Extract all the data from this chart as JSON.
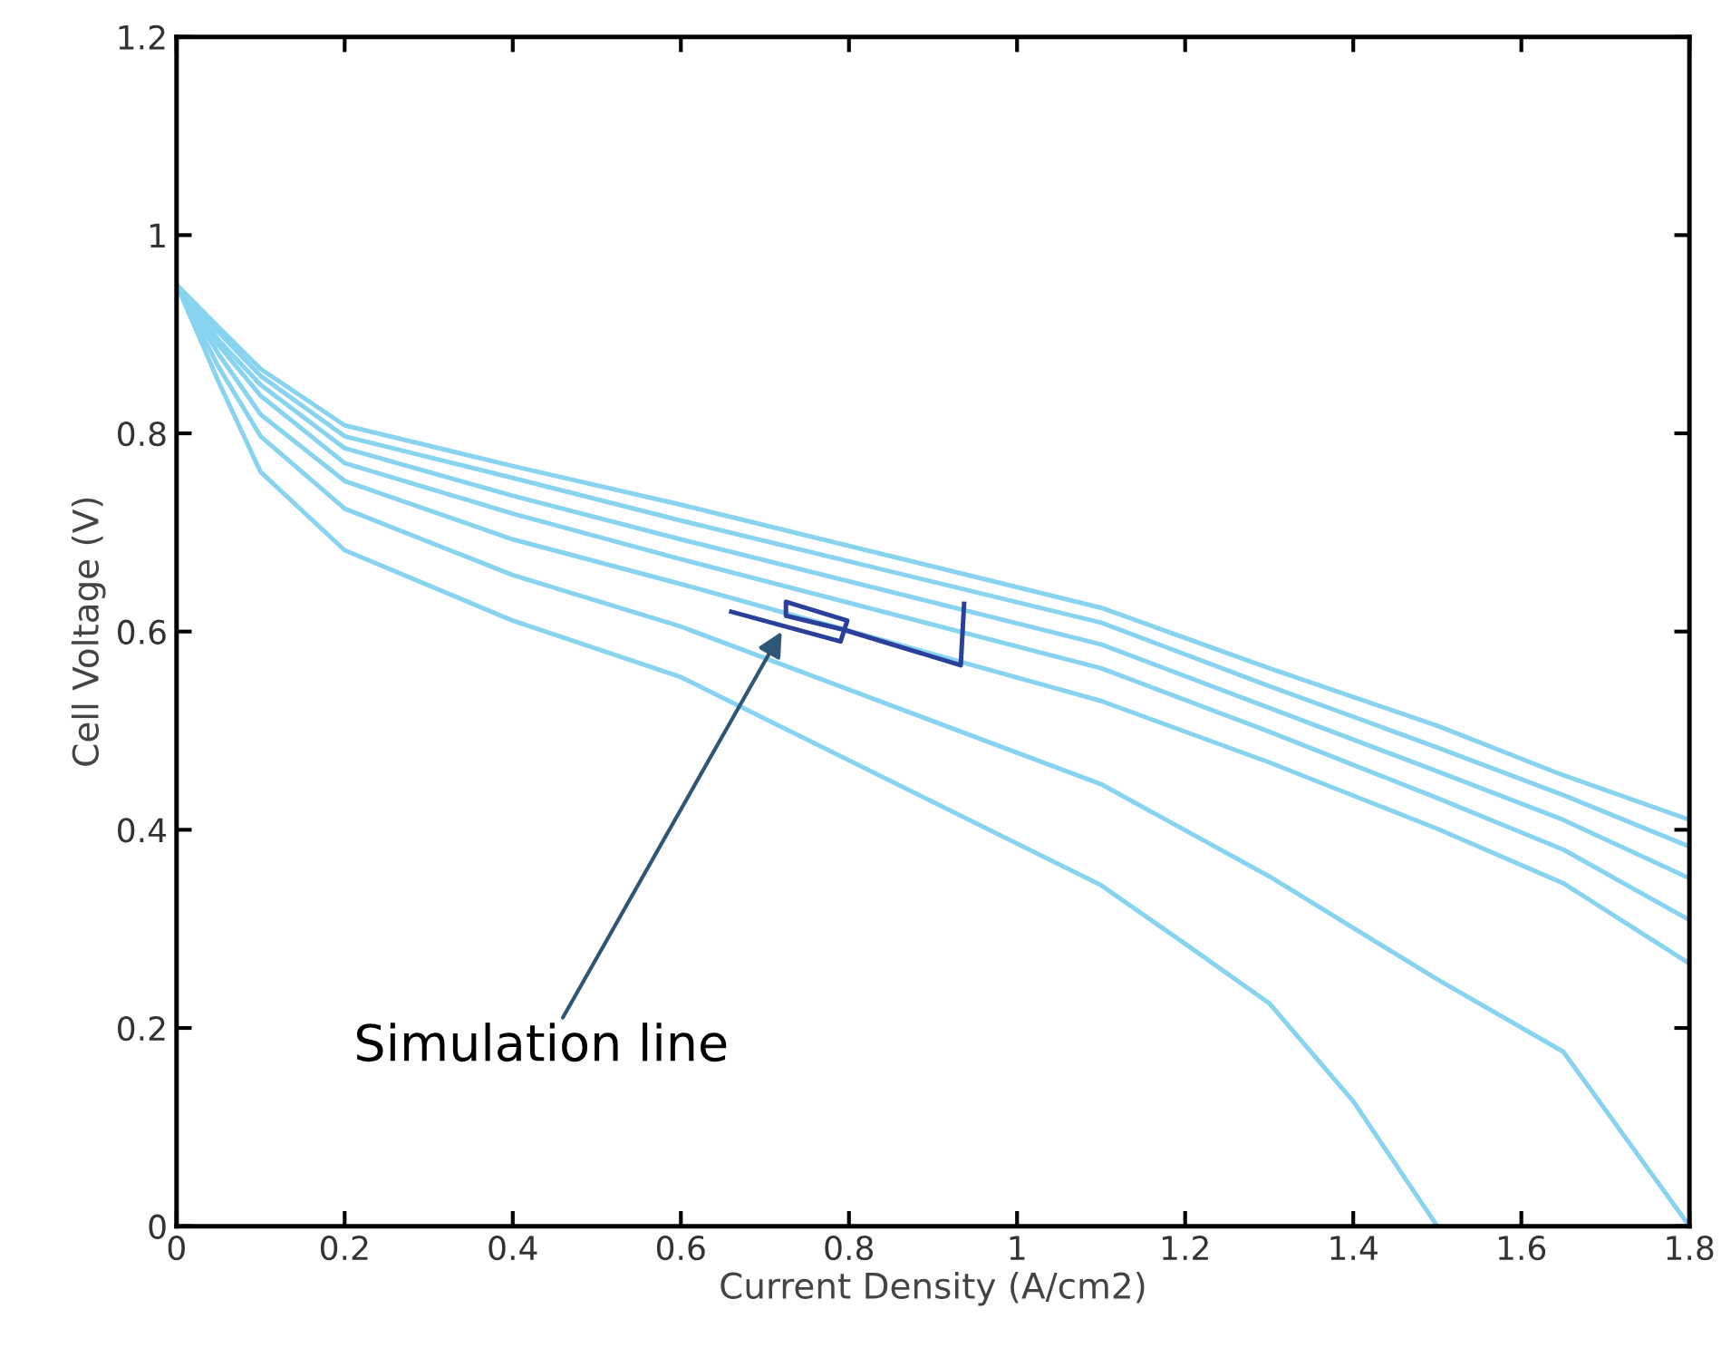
{
  "chart_data": {
    "type": "line",
    "xlabel": "Current Density (A/cm2)",
    "ylabel": "Cell Voltage (V)",
    "xlim": [
      0,
      1.8
    ],
    "ylim": [
      0,
      1.2
    ],
    "xticks": [
      0,
      0.2,
      0.4,
      0.6,
      0.8,
      1,
      1.2,
      1.4,
      1.6,
      1.8
    ],
    "yticks": [
      0,
      0.2,
      0.4,
      0.6,
      0.8,
      1,
      1.2
    ],
    "grid": false,
    "legend": false,
    "marker": "none",
    "line_style": "solid",
    "annotations": [
      {
        "text": "Simulation line",
        "x": 0.72,
        "y": 0.6
      }
    ],
    "series": [
      {
        "color": "#87d3f0",
        "x": [
          0,
          0.05,
          0.1,
          0.2,
          0.4,
          0.6,
          1.1,
          1.3,
          1.5,
          1.65,
          1.8
        ],
        "values": [
          0.95,
          0.907,
          0.865,
          0.808,
          0.767,
          0.728,
          0.624,
          0.563,
          0.505,
          0.455,
          0.41
        ]
      },
      {
        "color": "#87d3f0",
        "x": [
          0,
          0.05,
          0.1,
          0.2,
          0.4,
          0.6,
          1.1,
          1.3,
          1.5,
          1.65,
          1.8
        ],
        "values": [
          0.95,
          0.902,
          0.858,
          0.797,
          0.755,
          0.712,
          0.609,
          0.545,
          0.483,
          0.435,
          0.383
        ]
      },
      {
        "color": "#87d3f0",
        "x": [
          0,
          0.05,
          0.1,
          0.2,
          0.4,
          0.6,
          1.1,
          1.3,
          1.5,
          1.65,
          1.8
        ],
        "values": [
          0.95,
          0.894,
          0.849,
          0.785,
          0.737,
          0.693,
          0.587,
          0.523,
          0.459,
          0.41,
          0.351
        ]
      },
      {
        "color": "#87d3f0",
        "x": [
          0,
          0.05,
          0.1,
          0.2,
          0.4,
          0.6,
          1.1,
          1.3,
          1.5,
          1.65,
          1.8
        ],
        "values": [
          0.95,
          0.889,
          0.838,
          0.77,
          0.719,
          0.673,
          0.563,
          0.499,
          0.432,
          0.38,
          0.309
        ]
      },
      {
        "color": "#87d3f0",
        "x": [
          0,
          0.05,
          0.1,
          0.2,
          0.4,
          0.6,
          1.1,
          1.3,
          1.5,
          1.65,
          1.8
        ],
        "values": [
          0.95,
          0.88,
          0.819,
          0.752,
          0.693,
          0.648,
          0.53,
          0.468,
          0.401,
          0.346,
          0.265
        ]
      },
      {
        "color": "#87d3f0",
        "x": [
          0,
          0.05,
          0.1,
          0.2,
          0.4,
          0.6,
          1.1,
          1.3,
          1.5,
          1.65,
          1.8
        ],
        "values": [
          0.95,
          0.867,
          0.797,
          0.724,
          0.657,
          0.605,
          0.446,
          0.353,
          0.249,
          0.176,
          0
        ]
      },
      {
        "color": "#87d3f0",
        "x": [
          0,
          0.05,
          0.1,
          0.2,
          0.4,
          0.6,
          1.1,
          1.2,
          1.3,
          1.4,
          1.5
        ],
        "values": [
          0.95,
          0.852,
          0.761,
          0.682,
          0.611,
          0.554,
          0.344,
          0.285,
          0.225,
          0.126,
          0
        ]
      },
      {
        "color": "#2b3f9c",
        "x": [
          0.66,
          0.79,
          0.798,
          0.725,
          0.725,
          0.793,
          0.933,
          0.937
        ],
        "values": [
          0.62,
          0.59,
          0.611,
          0.63,
          0.616,
          0.602,
          0.566,
          0.628
        ]
      }
    ]
  }
}
